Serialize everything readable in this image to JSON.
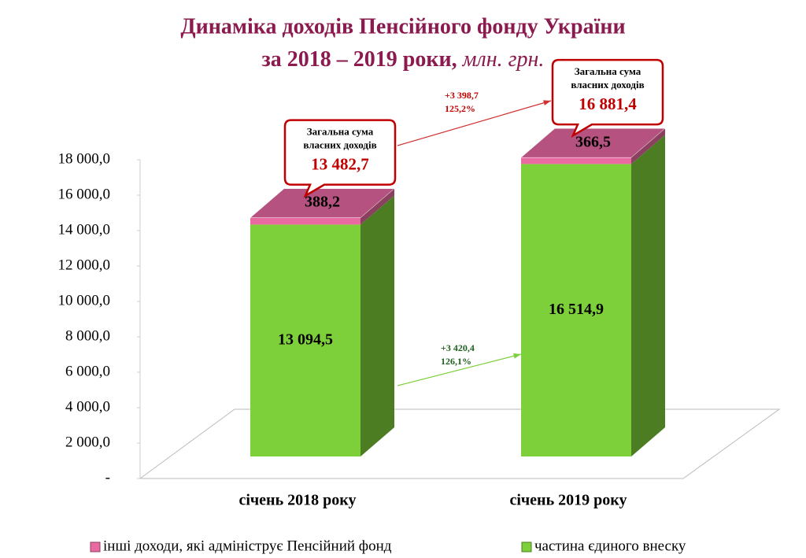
{
  "chart_data": {
    "type": "bar3d_stacked",
    "title": "Динаміка доходів Пенсійного фонду України",
    "subtitle": "за 2018 – 2019 роки,",
    "unit": "млн. грн.",
    "categories": [
      "січень 2018 року",
      "січень 2019 року"
    ],
    "series": [
      {
        "name": "частина єдиного внеску",
        "color": "#7ed03a",
        "values": [
          13094.5,
          16514.9
        ],
        "value_labels": [
          "13 094,5",
          "16 514,9"
        ]
      },
      {
        "name": "інші доходи, які адмініструє Пенсійний фонд",
        "color": "#e86aa0",
        "values": [
          388.2,
          366.5
        ],
        "value_labels": [
          "388,2",
          "366,5"
        ]
      }
    ],
    "totals": {
      "label_lines": [
        "Загальна сума",
        "власних доходів"
      ],
      "values": [
        13482.7,
        16881.4
      ],
      "value_labels": [
        "13 482,7",
        "16 881,4"
      ]
    },
    "changes": [
      {
        "label": "+3 398,7",
        "percent_label": "125,2%",
        "color": "#c00000"
      },
      {
        "label": "+3 420,4",
        "percent_label": "126,1%",
        "color": "#1f5f1f"
      }
    ],
    "ylim": [
      0,
      18000
    ],
    "yticks": [
      {
        "value": 0,
        "label": "-"
      },
      {
        "value": 2000,
        "label": "2 000,0"
      },
      {
        "value": 4000,
        "label": "4 000,0"
      },
      {
        "value": 6000,
        "label": "6 000,0"
      },
      {
        "value": 8000,
        "label": "8 000,0"
      },
      {
        "value": 10000,
        "label": "10 000,0"
      },
      {
        "value": 12000,
        "label": "12 000,0"
      },
      {
        "value": 14000,
        "label": "14 000,0"
      },
      {
        "value": 16000,
        "label": "16 000,0"
      },
      {
        "value": 18000,
        "label": "18 000,0"
      }
    ]
  }
}
